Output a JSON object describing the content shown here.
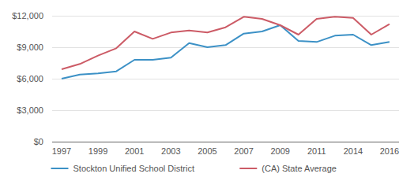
{
  "chart_data": {
    "type": "line",
    "categories": [
      "1997",
      null,
      "1999",
      null,
      "2001",
      null,
      "2003",
      null,
      "2005",
      null,
      "2007",
      null,
      "2009",
      null,
      "2011",
      null,
      "2014",
      null,
      "2016"
    ],
    "series": [
      {
        "name": "Stockton Unified School District",
        "color": "#3c91c6",
        "values": [
          6000,
          6400,
          6500,
          6700,
          7800,
          7800,
          8000,
          9400,
          9000,
          9200,
          10300,
          10500,
          11100,
          9600,
          9500,
          10100,
          10200,
          9200,
          9500
        ]
      },
      {
        "name": "(CA) State Average",
        "color": "#cc5b66",
        "values": [
          6900,
          7400,
          8200,
          8900,
          10500,
          9800,
          10400,
          10600,
          10400,
          10900,
          11900,
          11700,
          11100,
          10200,
          11700,
          11900,
          11800,
          10200,
          11200
        ]
      }
    ],
    "ylim": [
      0,
      12000
    ],
    "yticks": [
      {
        "value": 0,
        "label": "$0"
      },
      {
        "value": 3000,
        "label": "$3,000"
      },
      {
        "value": 6000,
        "label": "$6,000"
      },
      {
        "value": 9000,
        "label": "$9,000"
      },
      {
        "value": 12000,
        "label": "$12,000"
      }
    ],
    "grid": true,
    "legend": "bottom"
  }
}
